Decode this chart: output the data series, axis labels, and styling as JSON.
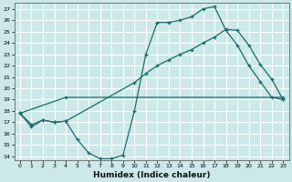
{
  "xlabel": "Humidex (Indice chaleur)",
  "bg_color": "#cce8e8",
  "line_color": "#1a6b6b",
  "grid_color": "#ffffff",
  "xmin": 0,
  "xmax": 23,
  "ymin": 14,
  "ymax": 27,
  "line1_x": [
    0,
    1,
    2,
    3,
    4,
    5,
    6,
    7,
    8,
    9,
    10,
    11,
    12,
    13,
    14,
    15,
    16,
    17,
    18,
    19,
    20,
    21,
    22,
    23
  ],
  "line1_y": [
    17.8,
    16.6,
    17.2,
    17.0,
    17.1,
    15.5,
    14.3,
    13.8,
    13.8,
    14.1,
    18.0,
    23.0,
    25.8,
    25.8,
    26.0,
    26.3,
    27.0,
    27.2,
    25.1,
    23.8,
    22.0,
    20.6,
    19.2,
    19.0
  ],
  "line2_x": [
    0,
    4,
    23
  ],
  "line2_y": [
    17.8,
    19.2,
    19.2
  ],
  "line3_x": [
    0,
    1,
    2,
    3,
    4,
    10,
    11,
    12,
    13,
    14,
    15,
    16,
    17,
    18,
    19,
    20,
    21,
    22,
    23
  ],
  "line3_y": [
    17.8,
    16.8,
    17.2,
    17.0,
    17.1,
    20.5,
    21.3,
    22.0,
    22.5,
    23.0,
    23.4,
    24.0,
    24.5,
    25.2,
    25.1,
    23.8,
    22.1,
    20.8,
    19.0
  ],
  "xtick_labels": [
    "0",
    "1",
    "2",
    "3",
    "4",
    "5",
    "6",
    "7",
    "8",
    "9",
    "10",
    "11",
    "12",
    "13",
    "14",
    "15",
    "16",
    "17",
    "18",
    "19",
    "20",
    "21",
    "22",
    "23"
  ],
  "ytick_labels": [
    "14",
    "15",
    "16",
    "17",
    "18",
    "19",
    "20",
    "21",
    "22",
    "23",
    "24",
    "25",
    "26",
    "27"
  ]
}
